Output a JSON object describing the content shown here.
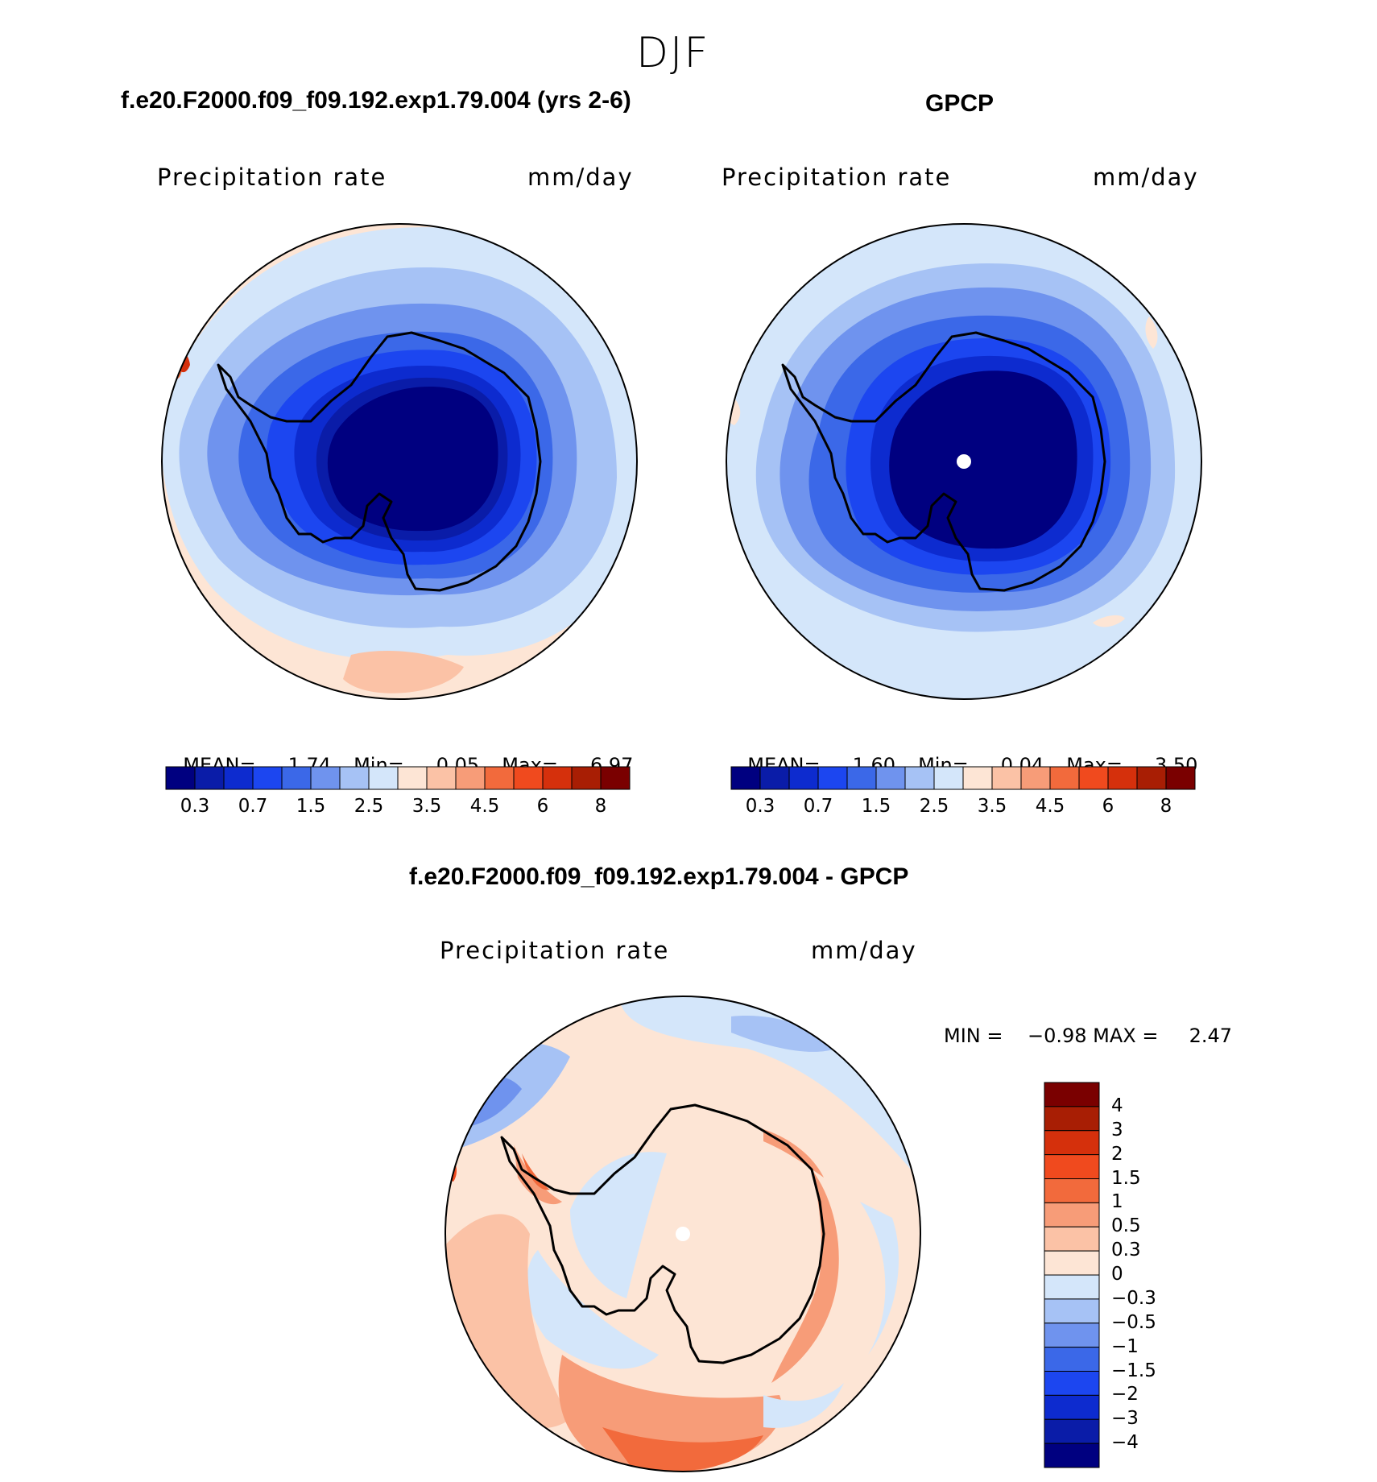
{
  "season": "DJF",
  "colors": {
    "abs_scale": [
      "#000080",
      "#0a1ca8",
      "#0d2bcf",
      "#1c46f0",
      "#3b68e8",
      "#6f93ee",
      "#a6c2f5",
      "#d4e6fa",
      "#fde5d5",
      "#fbc2a6",
      "#f79c78",
      "#f26a3c",
      "#f04a1e",
      "#d5300c",
      "#a81e04",
      "#7a0000"
    ],
    "diff_scale": [
      "#000080",
      "#0a1ca8",
      "#0d2bcf",
      "#1c46f0",
      "#3b68e8",
      "#6f93ee",
      "#a6c2f5",
      "#d4e6fa",
      "#fde5d5",
      "#fbc2a6",
      "#f79c78",
      "#f26a3c",
      "#f04a1e",
      "#d5300c",
      "#a81e04",
      "#7a0000"
    ]
  },
  "panels": [
    {
      "title": "f.e20.F2000.f09_f09.192.exp1.79.004 (yrs 2-6)",
      "subtitle_left": "Precipitation  rate",
      "subtitle_right": "mm/day",
      "stats": {
        "mean_label": "MEAN=",
        "mean": "1.74",
        "min_label": "Min=",
        "min": "0.05",
        "max_label": "Max=",
        "max": "6.97"
      },
      "colorbar_ticks": [
        "0.3",
        "0.7",
        "1.5",
        "2.5",
        "3.5",
        "4.5",
        "6",
        "8"
      ]
    },
    {
      "title": "GPCP",
      "subtitle_left": "Precipitation  rate",
      "subtitle_right": "mm/day",
      "stats": {
        "mean_label": "MEAN=",
        "mean": "1.60",
        "min_label": "Min=",
        "min": "0.04",
        "max_label": "Max=",
        "max": "3.50"
      },
      "colorbar_ticks": [
        "0.3",
        "0.7",
        "1.5",
        "2.5",
        "3.5",
        "4.5",
        "6",
        "8"
      ]
    }
  ],
  "difference": {
    "title": "f.e20.F2000.f09_f09.192.exp1.79.004 - GPCP",
    "subtitle_left": "Precipitation  rate",
    "subtitle_right": "mm/day",
    "minmax": "MIN =    −0.98 MAX =     2.47",
    "colorbar_ticks": [
      "4",
      "3",
      "2",
      "1.5",
      "1",
      "0.5",
      "0.3",
      "0",
      "−0.3",
      "−0.5",
      "−1",
      "−1.5",
      "−2",
      "−3",
      "−4"
    ]
  }
}
